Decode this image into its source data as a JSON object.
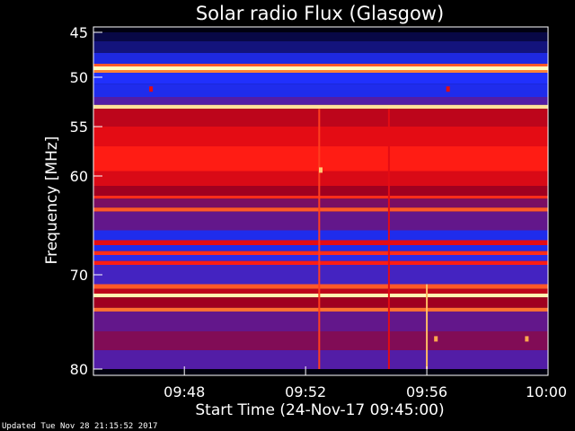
{
  "chart_data": {
    "type": "heatmap",
    "title": "Solar radio Flux (Glasgow)",
    "xlabel": "Start Time (24-Nov-17 09:45:00)",
    "ylabel": "Frequency [MHz]",
    "x_range_minutes": [
      0,
      15
    ],
    "y_range_mhz": [
      45,
      80
    ],
    "x_ticks": [
      {
        "minute": 3,
        "label": "09:48"
      },
      {
        "minute": 7,
        "label": "09:52"
      },
      {
        "minute": 11,
        "label": "09:56"
      },
      {
        "minute": 15,
        "label": "10:00"
      }
    ],
    "y_ticks": [
      {
        "mhz": 45,
        "label": "45"
      },
      {
        "mhz": 50,
        "label": "50"
      },
      {
        "mhz": 55,
        "label": "55"
      },
      {
        "mhz": 60,
        "label": "60"
      },
      {
        "mhz": 70,
        "label": "70"
      },
      {
        "mhz": 80,
        "label": "80"
      }
    ],
    "colormap": [
      "#000020",
      "#1a1aa0",
      "#2030ff",
      "#a00020",
      "#ff1010",
      "#ffa040",
      "#ffffc0"
    ],
    "bands": [
      {
        "from_mhz": 45.0,
        "to_mhz": 46.0,
        "level": 0.05
      },
      {
        "from_mhz": 46.0,
        "to_mhz": 47.3,
        "level": 0.12
      },
      {
        "from_mhz": 47.3,
        "to_mhz": 48.5,
        "level": 0.28
      },
      {
        "from_mhz": 48.5,
        "to_mhz": 48.8,
        "level": 0.75
      },
      {
        "from_mhz": 48.8,
        "to_mhz": 49.2,
        "level": 1.0
      },
      {
        "from_mhz": 49.2,
        "to_mhz": 49.5,
        "level": 0.8
      },
      {
        "from_mhz": 49.5,
        "to_mhz": 50.7,
        "level": 0.33
      },
      {
        "from_mhz": 50.7,
        "to_mhz": 52.0,
        "level": 0.3
      },
      {
        "from_mhz": 52.0,
        "to_mhz": 52.8,
        "level": 0.4
      },
      {
        "from_mhz": 52.8,
        "to_mhz": 53.2,
        "level": 0.95
      },
      {
        "from_mhz": 53.2,
        "to_mhz": 55.0,
        "level": 0.55
      },
      {
        "from_mhz": 55.0,
        "to_mhz": 57.0,
        "level": 0.62
      },
      {
        "from_mhz": 57.0,
        "to_mhz": 59.5,
        "level": 0.68
      },
      {
        "from_mhz": 59.5,
        "to_mhz": 61.0,
        "level": 0.6
      },
      {
        "from_mhz": 61.0,
        "to_mhz": 62.0,
        "level": 0.5
      },
      {
        "from_mhz": 62.0,
        "to_mhz": 62.3,
        "level": 0.7
      },
      {
        "from_mhz": 62.3,
        "to_mhz": 63.2,
        "level": 0.45
      },
      {
        "from_mhz": 63.2,
        "to_mhz": 63.6,
        "level": 0.75
      },
      {
        "from_mhz": 63.6,
        "to_mhz": 65.5,
        "level": 0.42
      },
      {
        "from_mhz": 65.5,
        "to_mhz": 66.5,
        "level": 0.3
      },
      {
        "from_mhz": 66.5,
        "to_mhz": 67.0,
        "level": 0.62
      },
      {
        "from_mhz": 67.0,
        "to_mhz": 67.6,
        "level": 0.3
      },
      {
        "from_mhz": 67.6,
        "to_mhz": 68.0,
        "level": 0.7
      },
      {
        "from_mhz": 68.0,
        "to_mhz": 68.6,
        "level": 0.35
      },
      {
        "from_mhz": 68.6,
        "to_mhz": 69.0,
        "level": 0.68
      },
      {
        "from_mhz": 69.0,
        "to_mhz": 71.0,
        "level": 0.38
      },
      {
        "from_mhz": 71.0,
        "to_mhz": 71.5,
        "level": 0.75
      },
      {
        "from_mhz": 71.5,
        "to_mhz": 72.0,
        "level": 0.55
      },
      {
        "from_mhz": 72.0,
        "to_mhz": 72.4,
        "level": 0.98
      },
      {
        "from_mhz": 72.4,
        "to_mhz": 73.5,
        "level": 0.5
      },
      {
        "from_mhz": 73.5,
        "to_mhz": 73.9,
        "level": 0.78
      },
      {
        "from_mhz": 73.9,
        "to_mhz": 76.0,
        "level": 0.42
      },
      {
        "from_mhz": 76.0,
        "to_mhz": 78.0,
        "level": 0.46
      },
      {
        "from_mhz": 78.0,
        "to_mhz": 80.0,
        "level": 0.4
      }
    ],
    "vertical_streaks": [
      {
        "minute": 7.45,
        "from_mhz": 53.2,
        "to_mhz": 80.0,
        "level": 0.72
      },
      {
        "minute": 9.75,
        "from_mhz": 53.2,
        "to_mhz": 80.0,
        "level": 0.62
      },
      {
        "minute": 11.0,
        "from_mhz": 71.0,
        "to_mhz": 80.0,
        "level": 0.88
      }
    ],
    "spots": [
      {
        "minute": 1.9,
        "mhz": 51.2,
        "level": 0.62
      },
      {
        "minute": 11.7,
        "mhz": 51.2,
        "level": 0.62
      },
      {
        "minute": 7.5,
        "mhz": 59.4,
        "level": 0.9
      },
      {
        "minute": 11.3,
        "mhz": 76.8,
        "level": 0.85
      },
      {
        "minute": 14.3,
        "mhz": 76.8,
        "level": 0.85
      }
    ]
  },
  "footer": {
    "updated": "Updated Tue Nov 28 21:15:52 2017"
  }
}
